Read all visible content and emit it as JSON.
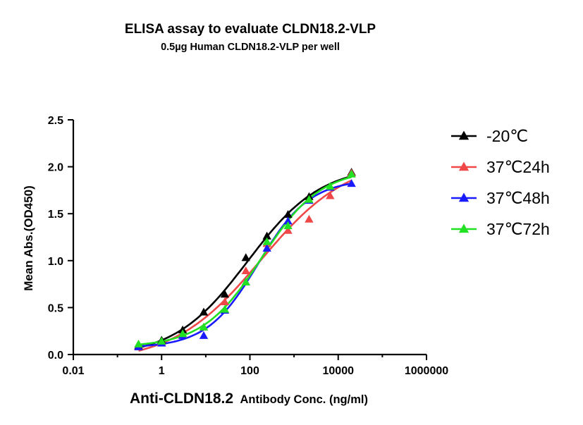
{
  "chart_data": {
    "type": "scatter",
    "title": "ELISA assay to evaluate CLDN18.2-VLP",
    "subtitle": "0.5µg Human CLDN18.2-VLP per well",
    "xlabel_main": "Anti-CLDN18.2",
    "xlabel_rest": "Antibody Conc. (ng/ml)",
    "ylabel": "Mean Abs.(OD450)",
    "xscale": "log",
    "xlim": [
      0.01,
      1000000
    ],
    "ylim": [
      0,
      2.5
    ],
    "x_ticks": [
      0.01,
      1,
      100,
      10000,
      1000000
    ],
    "x_tick_labels": [
      "0.01",
      "1",
      "100",
      "10000",
      "1000000"
    ],
    "y_ticks": [
      0.0,
      0.5,
      1.0,
      1.5,
      2.0,
      2.5
    ],
    "y_tick_labels": [
      "0.0",
      "0.5",
      "1.0",
      "1.5",
      "2.0",
      "2.5"
    ],
    "grid": false,
    "legend_position": "right",
    "x": [
      0.3,
      1,
      3,
      9,
      27,
      81,
      243,
      729,
      2187,
      6561,
      20000
    ],
    "series": [
      {
        "name": "-20℃",
        "color": "#000000",
        "values": [
          0.09,
          0.15,
          0.26,
          0.45,
          0.64,
          1.03,
          1.26,
          1.49,
          1.68,
          1.78,
          1.94
        ]
      },
      {
        "name": "37℃24h",
        "color": "#f04848",
        "values": [
          0.08,
          0.13,
          0.21,
          0.29,
          0.56,
          0.89,
          1.18,
          1.32,
          1.44,
          1.69,
          1.93
        ]
      },
      {
        "name": "37℃48h",
        "color": "#1a1aff",
        "values": [
          0.08,
          0.12,
          0.2,
          0.2,
          0.47,
          0.77,
          1.13,
          1.42,
          1.64,
          1.78,
          1.82
        ]
      },
      {
        "name": "37℃72h",
        "color": "#22e022",
        "values": [
          0.11,
          0.14,
          0.22,
          0.29,
          0.48,
          0.77,
          1.2,
          1.37,
          1.65,
          1.79,
          1.92
        ]
      }
    ]
  }
}
